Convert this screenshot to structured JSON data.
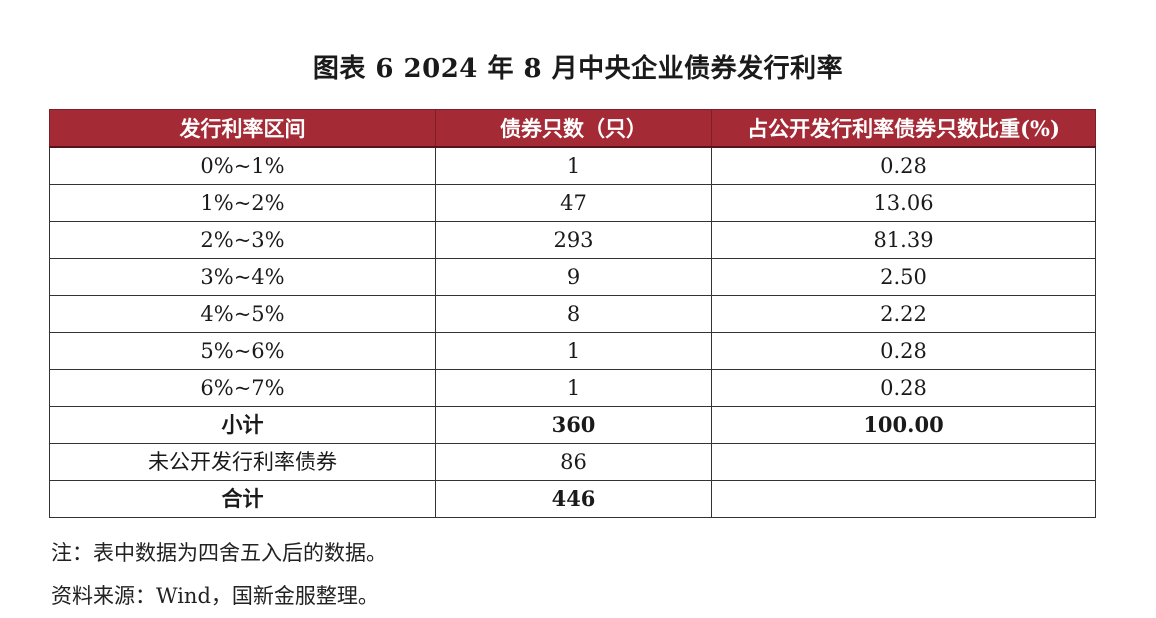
{
  "title": "图表 6 2024 年 8 月中央企业债券发行利率",
  "table": {
    "headers": [
      "发行利率区间",
      "债券只数（只）",
      "占公开发行利率债券只数比重(%)"
    ],
    "rows": [
      {
        "range": "0%~1%",
        "count": "1",
        "share": "0.28"
      },
      {
        "range": "1%~2%",
        "count": "47",
        "share": "13.06"
      },
      {
        "range": "2%~3%",
        "count": "293",
        "share": "81.39"
      },
      {
        "range": "3%~4%",
        "count": "9",
        "share": "2.50"
      },
      {
        "range": "4%~5%",
        "count": "8",
        "share": "2.22"
      },
      {
        "range": "5%~6%",
        "count": "1",
        "share": "0.28"
      },
      {
        "range": "6%~7%",
        "count": "1",
        "share": "0.28"
      }
    ],
    "subtotal": {
      "label": "小计",
      "count": "360",
      "share": "100.00"
    },
    "undisclosed": {
      "label": "未公开发行利率债券",
      "count": "86",
      "share": ""
    },
    "total": {
      "label": "合计",
      "count": "446",
      "share": ""
    }
  },
  "notes": {
    "note": "注：表中数据为四舍五入后的数据。",
    "source": "资料来源：Wind，国新金服整理。"
  },
  "colors": {
    "header_bg": "#a42a35",
    "header_text": "#ffffff"
  }
}
